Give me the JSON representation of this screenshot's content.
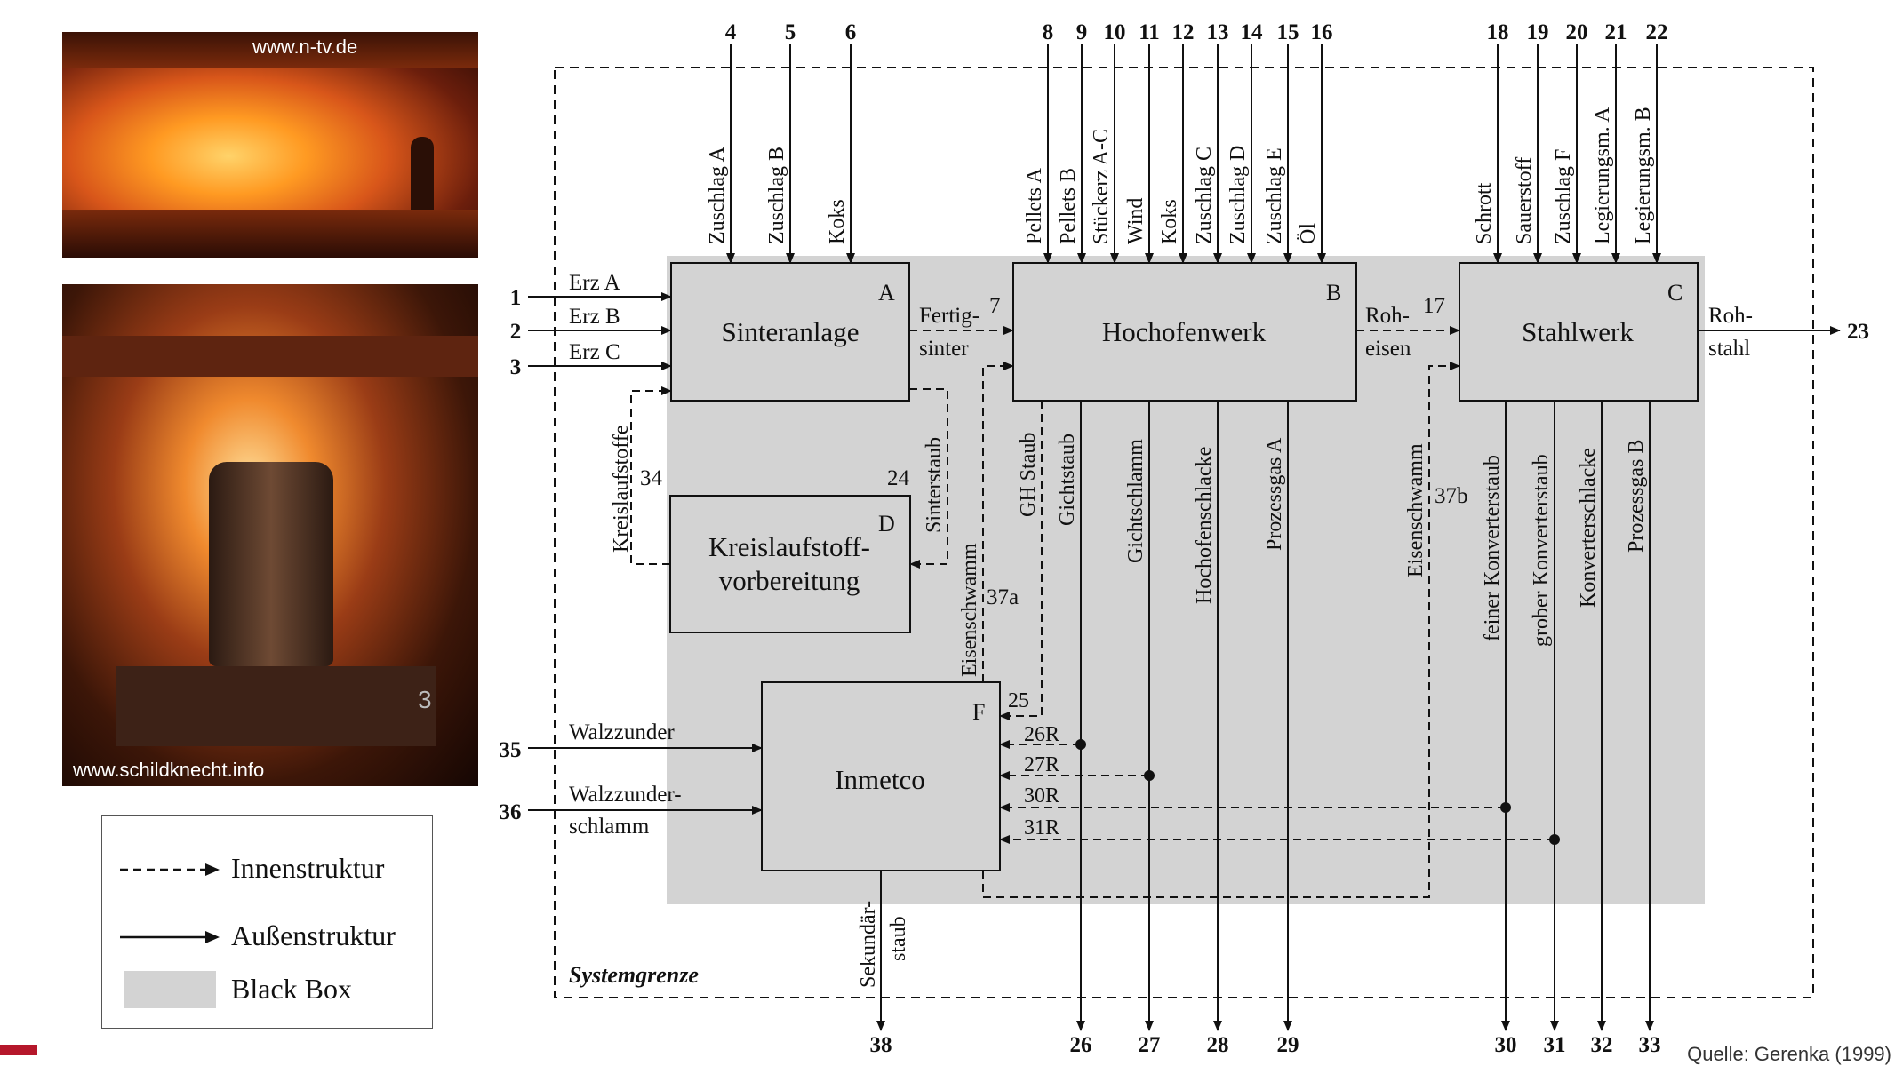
{
  "photos": {
    "top_caption": "www.n-tv.de",
    "bottom_caption": "www.schildknecht.info",
    "cart_number": "3"
  },
  "legend": {
    "inner": "Innenstruktur",
    "outer": "Außenstruktur",
    "blackbox": "Black Box"
  },
  "diagram": {
    "system_boundary": "Systemgrenze",
    "colors": {
      "blackbox": "#d3d3d3",
      "line": "#111111"
    },
    "boxes": {
      "A": {
        "letter": "A",
        "name": "Sinteranlage"
      },
      "B": {
        "letter": "B",
        "name": "Hochofenwerk"
      },
      "C": {
        "letter": "C",
        "name": "Stahlwerk"
      },
      "D": {
        "letter": "D",
        "name1": "Kreislaufstoff-",
        "name2": "vorbereitung"
      },
      "F": {
        "letter": "F",
        "name": "Inmetco"
      }
    },
    "top_inputs": [
      {
        "num": "4",
        "label": "Zuschlag A"
      },
      {
        "num": "5",
        "label": "Zuschlag B"
      },
      {
        "num": "6",
        "label": "Koks"
      },
      {
        "num": "8",
        "label": "Pellets A"
      },
      {
        "num": "9",
        "label": "Pellets B"
      },
      {
        "num": "10",
        "label": "Stückerz A-C"
      },
      {
        "num": "11",
        "label": "Wind"
      },
      {
        "num": "12",
        "label": "Koks"
      },
      {
        "num": "13",
        "label": "Zuschlag C"
      },
      {
        "num": "14",
        "label": "Zuschlag D"
      },
      {
        "num": "15",
        "label": "Zuschlag E"
      },
      {
        "num": "16",
        "label": "Öl"
      },
      {
        "num": "18",
        "label": "Schrott"
      },
      {
        "num": "19",
        "label": "Sauerstoff"
      },
      {
        "num": "20",
        "label": "Zuschlag F"
      },
      {
        "num": "21",
        "label": "Legierungsm. A"
      },
      {
        "num": "22",
        "label": "Legierungsm. B"
      }
    ],
    "left_inputs": [
      {
        "num": "1",
        "label": "Erz A"
      },
      {
        "num": "2",
        "label": "Erz B"
      },
      {
        "num": "3",
        "label": "Erz C"
      },
      {
        "num": "35",
        "label": "Walzzunder"
      },
      {
        "num": "36",
        "label1": "Walzzunder-",
        "label2": "schlamm"
      }
    ],
    "internal": {
      "fertigsinter1": "Fertig-",
      "fertigsinter2": "sinter",
      "n7": "7",
      "roheisen1": "Roh-",
      "roheisen2": "eisen",
      "n17": "17",
      "kreislauf": "Kreislaufstoffe",
      "n34": "34",
      "sinterstaub": "Sinterstaub",
      "n24": "24",
      "eisenschwamm_a": "Eisenschwamm",
      "n37a": "37a",
      "eisenschwamm_b": "Eisenschwamm",
      "n37b": "37b",
      "gh_staub": "GH Staub",
      "n25": "25",
      "r26": "26R",
      "r27": "27R",
      "r30": "30R",
      "r31": "31R"
    },
    "output": {
      "rohstahl1": "Roh-",
      "rohstahl2": "stahl",
      "n23": "23",
      "sekundar1": "Sekundär-",
      "sekundar2": "staub",
      "n38": "38"
    },
    "bottom_outputs": [
      {
        "num": "26",
        "label": "Gichtstaub"
      },
      {
        "num": "27",
        "label": "Gichtschlamm"
      },
      {
        "num": "28",
        "label": "Hochofenschlacke"
      },
      {
        "num": "29",
        "label": "Prozessgas A"
      },
      {
        "num": "30",
        "label": "feiner Konverterstaub"
      },
      {
        "num": "31",
        "label": "grober Konverterstaub"
      },
      {
        "num": "32",
        "label": "Konverterschlacke"
      },
      {
        "num": "33",
        "label": "Prozessgas B"
      }
    ],
    "source_partial": "Quelle: Gerenka (1999)"
  }
}
